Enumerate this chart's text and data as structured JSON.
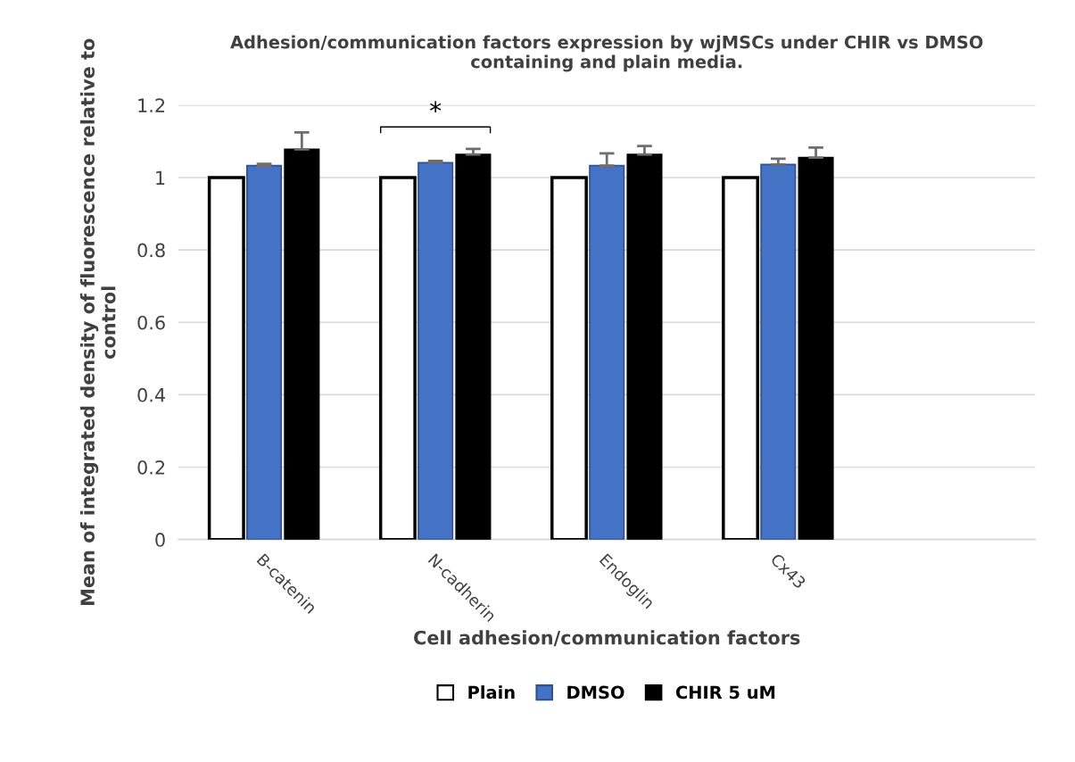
{
  "chart_data": {
    "type": "bar",
    "title": "Adhesion/communication factors expression by wjMSCs under CHIR vs DMSO\ncontaining and plain media.",
    "xlabel": "Cell adhesion/communication factors",
    "ylabel": "Mean of integrated density of fluorescence relative to\ncontrol",
    "categories": [
      "B-catenin",
      "N-cadherin",
      "Endoglin",
      "Cx43",
      null
    ],
    "series": [
      {
        "name": "Plain",
        "color": "#ffffff",
        "values": [
          1,
          1,
          1,
          1,
          null
        ]
      },
      {
        "name": "DMSO",
        "color": "#4472c4",
        "values": [
          1.033,
          1.041,
          1.033,
          1.036,
          null
        ],
        "errors": [
          0.005,
          0.005,
          0.034,
          0.016,
          null
        ]
      },
      {
        "name": "CHIR 5 uM",
        "color": "#000000",
        "values": [
          1.078,
          1.064,
          1.064,
          1.055,
          null
        ],
        "errors": [
          0.047,
          0.015,
          0.023,
          0.028,
          null
        ]
      }
    ],
    "ylim": [
      0,
      1.2
    ],
    "yticks": [
      0,
      0.2,
      0.4,
      0.6,
      0.8,
      1,
      1.2
    ],
    "grid": "y",
    "legend": "bottom",
    "annotations": [
      "*"
    ]
  }
}
